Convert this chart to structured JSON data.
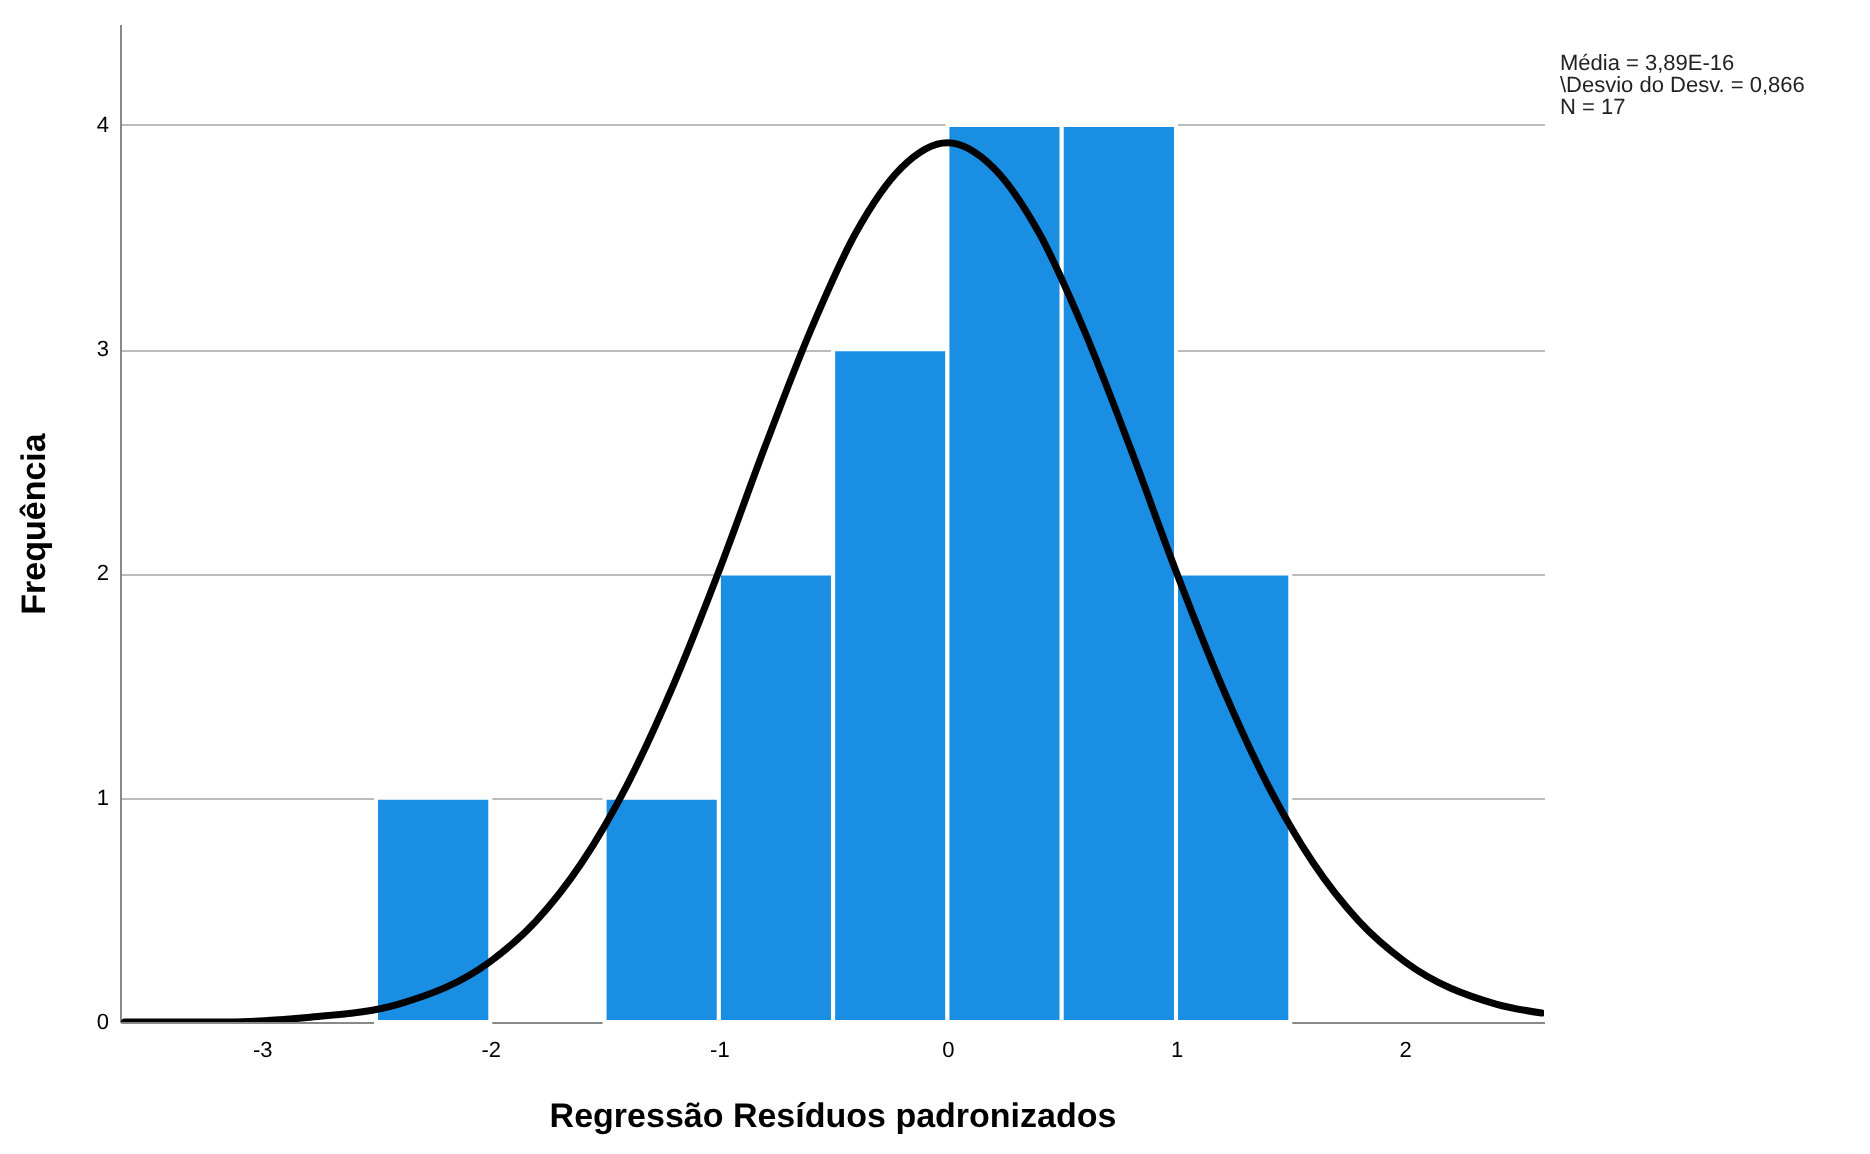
{
  "chart_data": {
    "type": "histogram",
    "xlabel": "Regressão Resíduos padronizados",
    "ylabel": "Frequência",
    "annotations": [
      "Média = 3,89E-16",
      "\\Desvio do Desv. = 0,866",
      "N = 17"
    ],
    "bins": [
      -2.5,
      -2,
      -1.5,
      -1,
      -0.5,
      0,
      0.5,
      1,
      1.5
    ],
    "values": [
      1,
      0,
      1,
      2,
      3,
      4,
      4,
      2
    ],
    "color": "#1a8ee3",
    "series": [
      {
        "type": "line",
        "color": "#000000",
        "x": [
          -3.6,
          -3.2,
          -2.8,
          -2.4,
          -2.0,
          -1.8,
          -1.6,
          -1.4,
          -1.2,
          -1.0,
          -0.8,
          -0.6,
          -0.4,
          -0.2,
          0,
          0.2,
          0.4,
          0.6,
          0.8,
          1.0,
          1.2,
          1.4,
          1.6,
          1.8,
          2.0,
          2.4,
          2.6
        ],
        "values": [
          0.0,
          0.0,
          0.02,
          0.08,
          0.27,
          0.45,
          0.71,
          1.06,
          1.5,
          2.01,
          2.56,
          3.08,
          3.52,
          3.81,
          3.92,
          3.81,
          3.52,
          3.08,
          2.56,
          2.01,
          1.5,
          1.06,
          0.71,
          0.45,
          0.27,
          0.08,
          0.04
        ]
      }
    ],
    "xlim": [
      -3.62,
      2.61
    ],
    "xticks": [
      -3,
      -2,
      -1,
      0,
      1,
      2
    ],
    "ylim": [
      0,
      4.45
    ],
    "yticks": [
      0,
      1,
      2,
      3,
      4
    ],
    "grid": "y",
    "line_style": "solid",
    "marker": "none"
  }
}
